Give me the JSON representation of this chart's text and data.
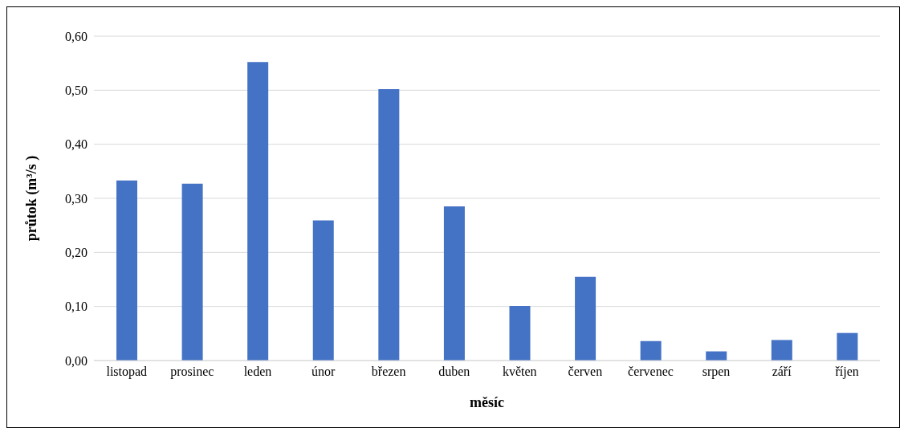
{
  "chart_data": {
    "type": "bar",
    "xlabel": "měsíc",
    "ylabel": "průtok (m³/s )",
    "categories": [
      "listopad",
      "prosinec",
      "leden",
      "únor",
      "březen",
      "duben",
      "květen",
      "červen",
      "červenec",
      "srpen",
      "září",
      "říjen"
    ],
    "values": [
      0.333,
      0.327,
      0.552,
      0.259,
      0.502,
      0.285,
      0.101,
      0.155,
      0.036,
      0.017,
      0.038,
      0.051
    ],
    "color": "#4472c4",
    "ylim": [
      0,
      0.6
    ],
    "yticks": [
      {
        "value": 0,
        "label": "0,00"
      },
      {
        "value": 0.1,
        "label": "0,10"
      },
      {
        "value": 0.2,
        "label": "0,20"
      },
      {
        "value": 0.3,
        "label": "0,30"
      },
      {
        "value": 0.4,
        "label": "0,40"
      },
      {
        "value": 0.5,
        "label": "0,50"
      },
      {
        "value": 0.6,
        "label": "0,60"
      }
    ],
    "grid": "y"
  }
}
